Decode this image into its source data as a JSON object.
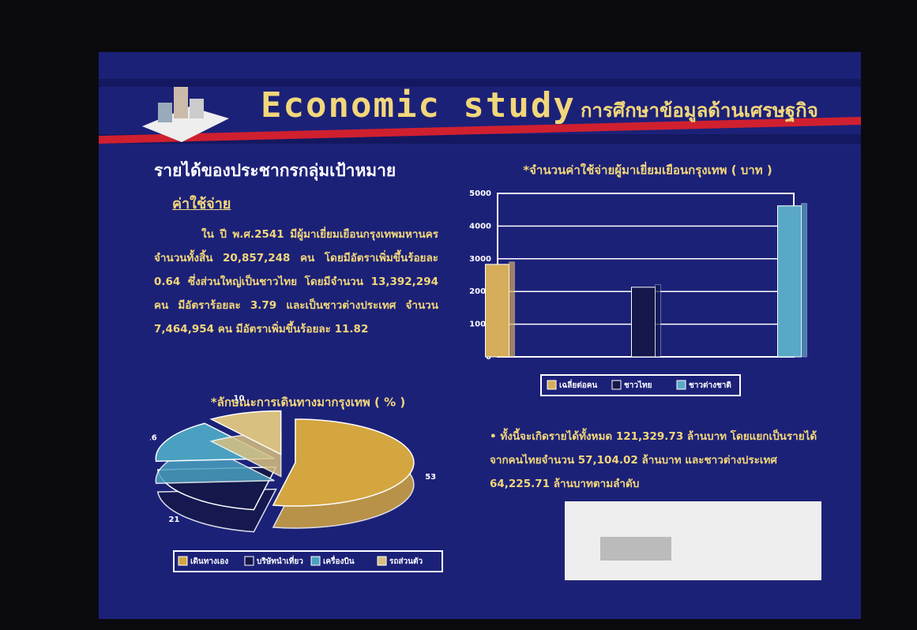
{
  "header": {
    "title_en": "Economic study",
    "title_th": "การศึกษาข้อมูลด้านเศรษฐกิจ"
  },
  "left": {
    "heading": "รายได้ของประชากรกลุ่มเป้าหมาย",
    "subheading": "ค่าใช้จ่าย",
    "paragraph": "ใน ปี พ.ศ.2541 มีผู้มาเยี่ยมเยือนกรุงเทพมหานคร จำนวนทั้งสิ้น 20,857,248 คน โดยมีอัตราเพิ่มขึ้นร้อยละ 0.64 ซึ่งส่วนใหญ่เป็นชาวไทย โดยมีจำนวน 13,392,294 คน มีอัตราร้อยละ 3.79 และเป็นชาวต่างประเทศ จำนวน 7,464,954 คน มีอัตราเพิ่มขึ้นร้อยละ 11.82"
  },
  "summary": "• ทั้งนี้จะเกิดรายได้ทั้งหมด 121,329.73 ล้านบาท โดยแยกเป็นรายได้จากคนไทยจำนวน 57,104.02 ล้านบาท และชาวต่างประเทศ 64,225.71 ล้านบาทตามลำดับ",
  "chart_data": [
    {
      "type": "bar",
      "title": "*จำนวนค่าใช้จ่ายผู้มาเยี่ยมเยือนกรุงเทพ ( บาท )",
      "categories": [
        "เฉลี่ยต่อคน",
        "ชาวไทย",
        "ชาวต่างชาติ"
      ],
      "values": [
        2830,
        2130,
        4620
      ],
      "colors": [
        "#d6ad5a",
        "#14184a",
        "#5aa8c8"
      ],
      "ylim": [
        0,
        5000
      ],
      "yticks": [
        0,
        1000,
        2000,
        3000,
        4000,
        5000
      ],
      "grid": true
    },
    {
      "type": "pie",
      "title": "*ลักษณะการเดินทางมากรุงเทพ ( % )",
      "categories": [
        "เดินทางเอง",
        "บริษัทนำเที่ยว",
        "เครื่องบิน",
        "รถส่วนตัว"
      ],
      "values": [
        53,
        21,
        16,
        10
      ],
      "colors": [
        "#d4a640",
        "#14184a",
        "#4aa0c0",
        "#d8c080"
      ]
    }
  ]
}
